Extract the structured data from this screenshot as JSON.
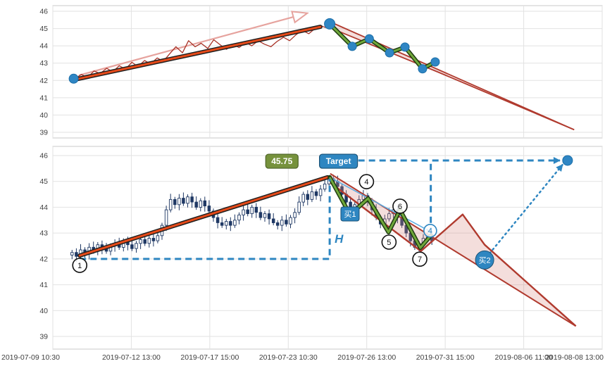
{
  "window": {
    "background": "#ffffff"
  },
  "colors": {
    "grid": "#e2e2e2",
    "panel_border": "#c9c9c9",
    "axis_text": "#404040",
    "price_line": "#a93226",
    "trend_core": "#e64a19",
    "trend_edge": "#1f1f1f",
    "wedge_line": "#b03a2e",
    "wedge_fill": "rgba(217,136,128,0.28)",
    "zigzag_green": "#70a83b",
    "zigzag_edge": "#1e3b10",
    "dot_blue": "#2f86c4",
    "dashed_blue": "#2e86c1",
    "candle": "#1f3864",
    "badge_olive": "#76923c",
    "badge_blue": "#2e86c1",
    "arrow_pink": "#e6a39e"
  },
  "chart_data": [
    {
      "panel": "top",
      "type": "line",
      "ylim": [
        39,
        46
      ],
      "y_ticks": [
        46,
        45,
        44,
        43,
        42,
        41,
        40,
        39
      ],
      "price_line": [
        [
          0.04,
          42.1
        ],
        [
          0.052,
          42.35
        ],
        [
          0.063,
          42.15
        ],
        [
          0.075,
          42.55
        ],
        [
          0.086,
          42.4
        ],
        [
          0.098,
          42.7
        ],
        [
          0.109,
          42.5
        ],
        [
          0.121,
          42.85
        ],
        [
          0.132,
          42.65
        ],
        [
          0.144,
          43.05
        ],
        [
          0.155,
          42.8
        ],
        [
          0.167,
          43.15
        ],
        [
          0.178,
          42.95
        ],
        [
          0.19,
          43.3
        ],
        [
          0.201,
          43.1
        ],
        [
          0.213,
          43.55
        ],
        [
          0.224,
          43.95
        ],
        [
          0.236,
          43.6
        ],
        [
          0.247,
          44.3
        ],
        [
          0.259,
          43.95
        ],
        [
          0.27,
          44.15
        ],
        [
          0.282,
          43.85
        ],
        [
          0.293,
          44.35
        ],
        [
          0.305,
          44.05
        ],
        [
          0.316,
          43.8
        ],
        [
          0.328,
          44.1
        ],
        [
          0.339,
          43.9
        ],
        [
          0.351,
          44.2
        ],
        [
          0.362,
          44.0
        ],
        [
          0.374,
          44.3
        ],
        [
          0.385,
          44.1
        ],
        [
          0.397,
          43.95
        ],
        [
          0.408,
          44.25
        ],
        [
          0.42,
          44.5
        ],
        [
          0.431,
          44.3
        ],
        [
          0.443,
          44.65
        ],
        [
          0.454,
          44.9
        ],
        [
          0.466,
          44.7
        ],
        [
          0.477,
          45.0
        ],
        [
          0.489,
          45.15
        ],
        [
          0.497,
          45.05
        ],
        [
          0.504,
          45.27
        ]
      ],
      "trendline": [
        [
          0.04,
          42.05
        ],
        [
          0.487,
          45.1
        ]
      ],
      "pink_arrow": [
        [
          0.048,
          42.3
        ],
        [
          0.462,
          45.88
        ]
      ],
      "wedge": {
        "apex_high": [
          0.504,
          45.4
        ],
        "apex_low": [
          0.504,
          45.05
        ],
        "lower_mid": [
          0.7,
          42.5
        ],
        "end": [
          0.949,
          39.15
        ]
      },
      "zigzag": [
        [
          0.504,
          45.27
        ],
        [
          0.545,
          43.97
        ],
        [
          0.576,
          44.41
        ],
        [
          0.613,
          43.6
        ],
        [
          0.641,
          43.93
        ],
        [
          0.673,
          42.67
        ],
        [
          0.696,
          43.07
        ]
      ],
      "dots": [
        [
          0.038,
          42.1
        ],
        [
          0.504,
          45.27
        ],
        [
          0.545,
          43.97
        ],
        [
          0.576,
          44.41
        ],
        [
          0.613,
          43.6
        ],
        [
          0.641,
          43.93
        ],
        [
          0.673,
          42.67
        ],
        [
          0.696,
          43.07
        ]
      ]
    },
    {
      "panel": "bottom",
      "type": "candlestick",
      "ylim": [
        39,
        46
      ],
      "y_ticks": [
        46,
        45,
        44,
        43,
        42,
        41,
        40,
        39
      ],
      "x_ticks": [
        "2019-07-09 10:30",
        "2019-07-12 13:00",
        "2019-07-17 15:00",
        "2019-07-23 10:30",
        "2019-07-26 13:00",
        "2019-07-31 15:00",
        "2019-08-06 11:00",
        "2019-08-08 13:00"
      ],
      "candles": {
        "start_frac": 0.035,
        "end_frac": 0.69,
        "first_open": 42.15,
        "closes": [
          42.25,
          42.1,
          42.35,
          42.2,
          42.45,
          42.3,
          42.55,
          42.4,
          42.3,
          42.5,
          42.6,
          42.45,
          42.7,
          42.55,
          42.4,
          42.6,
          42.75,
          42.6,
          42.8,
          42.7,
          42.9,
          43.3,
          43.9,
          44.3,
          44.1,
          44.35,
          44.15,
          44.4,
          44.2,
          44.0,
          44.25,
          44.05,
          43.85,
          43.6,
          43.4,
          43.3,
          43.45,
          43.3,
          43.5,
          43.7,
          43.9,
          43.75,
          44.0,
          43.8,
          43.6,
          43.75,
          43.55,
          43.4,
          43.3,
          43.5,
          43.35,
          43.6,
          43.8,
          44.2,
          44.5,
          44.3,
          44.6,
          44.45,
          44.7,
          44.9,
          45.1,
          45.0,
          44.8,
          44.5,
          44.2,
          43.9,
          44.1,
          44.3,
          44.45,
          44.2,
          43.9,
          43.6,
          43.35,
          43.55,
          43.75,
          43.9,
          43.6,
          43.3,
          43.0,
          42.7,
          42.45,
          42.6,
          42.8,
          42.95,
          42.7
        ]
      },
      "trendline": [
        [
          0.049,
          42.13
        ],
        [
          0.5,
          45.16
        ]
      ],
      "wedge": {
        "apex_high": [
          0.505,
          45.3
        ],
        "apex_low": [
          0.505,
          44.95
        ],
        "lower_path": [
          [
            0.67,
            42.3
          ],
          [
            0.746,
            43.72
          ],
          [
            0.786,
            42.55
          ]
        ],
        "end": [
          0.952,
          39.4
        ]
      },
      "zigzag": [
        [
          0.504,
          45.16
        ],
        [
          0.541,
          43.71
        ],
        [
          0.574,
          44.34
        ],
        [
          0.611,
          43.03
        ],
        [
          0.632,
          43.9
        ],
        [
          0.669,
          42.43
        ],
        [
          0.688,
          42.9
        ]
      ],
      "blue_guide": [
        [
          0.504,
          45.16
        ],
        [
          0.688,
          43.05
        ]
      ],
      "annotations": {
        "price_badge": {
          "label": "45.75",
          "x": 0.417,
          "y": 45.78
        },
        "target_badge": {
          "label": "Target",
          "x": 0.52,
          "y": 45.78
        },
        "target_line": {
          "y": 45.81,
          "x1": 0.556,
          "x2": 0.923
        },
        "target_dot": {
          "x": 0.937,
          "y": 45.81
        },
        "v_dash": {
          "x": 0.688,
          "y1": 45.68,
          "y2": 42.95
        },
        "h_measure": {
          "y": 42.0,
          "x1": 0.049,
          "x2": 0.504,
          "top": 45.1,
          "label": "H",
          "label_x": 0.513,
          "label_y": 42.62
        },
        "buy_markers": [
          {
            "label": "买1",
            "x": 0.541,
            "y": 43.74,
            "shape": "square"
          },
          {
            "label": "买2",
            "x": 0.786,
            "y": 41.96,
            "shape": "circle"
          }
        ],
        "buy2_arrow": {
          "from": [
            0.795,
            42.21
          ],
          "to": [
            0.928,
            45.65
          ]
        },
        "number_markers": [
          {
            "label": "1",
            "x": 0.049,
            "y": 41.75,
            "style": "black"
          },
          {
            "label": "4",
            "x": 0.571,
            "y": 44.99,
            "style": "black"
          },
          {
            "label": "5",
            "x": 0.612,
            "y": 42.65,
            "style": "black"
          },
          {
            "label": "6",
            "x": 0.632,
            "y": 44.04,
            "style": "black"
          },
          {
            "label": "7",
            "x": 0.668,
            "y": 41.99,
            "style": "black"
          },
          {
            "label": "4",
            "x": 0.687,
            "y": 43.09,
            "style": "blue"
          }
        ]
      }
    }
  ]
}
